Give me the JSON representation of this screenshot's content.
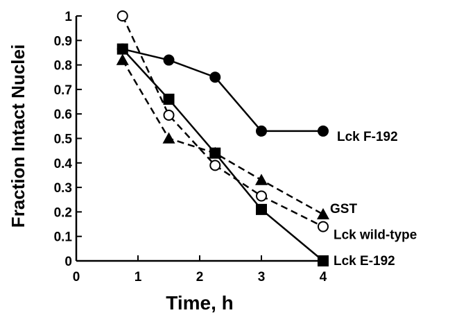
{
  "chart_data": {
    "type": "line",
    "title": "",
    "xlabel": "Time, h",
    "ylabel": "Fraction Intact Nuclei",
    "xlim": [
      0,
      4
    ],
    "ylim": [
      0,
      1
    ],
    "xticks": [
      "0",
      "1",
      "2",
      "3",
      "4"
    ],
    "yticks": [
      "0",
      "0.1",
      "0.2",
      "0.3",
      "0.4",
      "0.5",
      "0.6",
      "0.7",
      "0.8",
      "0.9",
      "1"
    ],
    "grid": false,
    "legend": "labels at line ends (right)",
    "series": [
      {
        "name": "Lck F-192",
        "marker": "filled-circle",
        "line": "solid",
        "x": [
          0.75,
          1.5,
          2.25,
          3.0,
          4.0
        ],
        "y": [
          0.865,
          0.82,
          0.75,
          0.53,
          0.53
        ]
      },
      {
        "name": "GST",
        "marker": "filled-triangle",
        "line": "dashed",
        "x": [
          0.75,
          1.5,
          2.25,
          3.0,
          4.0
        ],
        "y": [
          0.82,
          0.5,
          0.44,
          0.33,
          0.19
        ]
      },
      {
        "name": "Lck wild-type",
        "marker": "open-circle",
        "line": "dashed",
        "x": [
          0.75,
          1.5,
          2.25,
          3.0,
          4.0
        ],
        "y": [
          1.0,
          0.595,
          0.39,
          0.265,
          0.14
        ]
      },
      {
        "name": "Lck E-192",
        "marker": "filled-square",
        "line": "solid",
        "x": [
          0.75,
          1.5,
          2.25,
          3.0,
          4.0
        ],
        "y": [
          0.865,
          0.66,
          0.44,
          0.21,
          0.0
        ]
      }
    ]
  }
}
